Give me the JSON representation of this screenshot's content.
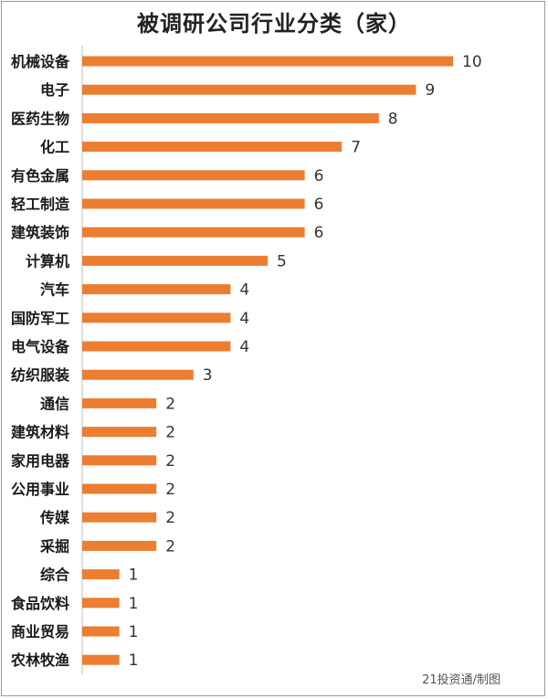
{
  "title": "被调研公司行业分类（家）",
  "credit": "21投资通/制图",
  "colors": {
    "bar": "#ED7D31",
    "axis": "#bfbfbf",
    "text": "#1a1a1a"
  },
  "chart_data": {
    "type": "bar",
    "orientation": "horizontal",
    "title": "被调研公司行业分类（家）",
    "xlabel": "",
    "ylabel": "",
    "xlim": [
      0,
      10
    ],
    "grid": false,
    "legend": "none",
    "categories": [
      "机械设备",
      "电子",
      "医药生物",
      "化工",
      "有色金属",
      "轻工制造",
      "建筑装饰",
      "计算机",
      "汽车",
      "国防军工",
      "电气设备",
      "纺织服装",
      "通信",
      "建筑材料",
      "家用电器",
      "公用事业",
      "传媒",
      "采掘",
      "综合",
      "食品饮料",
      "商业贸易",
      "农林牧渔"
    ],
    "values": [
      10,
      9,
      8,
      7,
      6,
      6,
      6,
      5,
      4,
      4,
      4,
      3,
      2,
      2,
      2,
      2,
      2,
      2,
      1,
      1,
      1,
      1
    ]
  }
}
